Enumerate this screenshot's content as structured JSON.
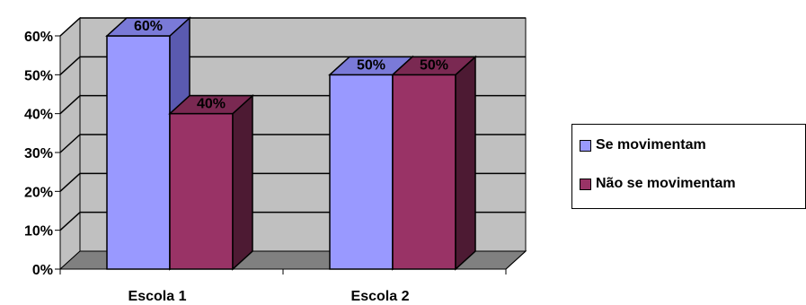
{
  "chart_data": {
    "type": "bar",
    "categories": [
      "Escola 1",
      "Escola 2"
    ],
    "series": [
      {
        "name": "Se movimentam",
        "values": [
          60,
          50
        ],
        "labels": [
          "60%",
          "50%"
        ],
        "color": "#9999ff",
        "side_color": "#5a5ab0",
        "top_color": "#7a7ad8"
      },
      {
        "name": "Não se movimentam",
        "values": [
          40,
          50
        ],
        "labels": [
          "40%",
          "50%"
        ],
        "color": "#993366",
        "side_color": "#4d1a33",
        "top_color": "#7a2952"
      }
    ],
    "yticks": [
      "0%",
      "10%",
      "20%",
      "30%",
      "40%",
      "50%",
      "60%"
    ],
    "ylim": [
      0,
      60
    ],
    "grid": true,
    "legend_position": "right",
    "wall_color": "#c0c0c0",
    "floor_color": "#808080"
  }
}
